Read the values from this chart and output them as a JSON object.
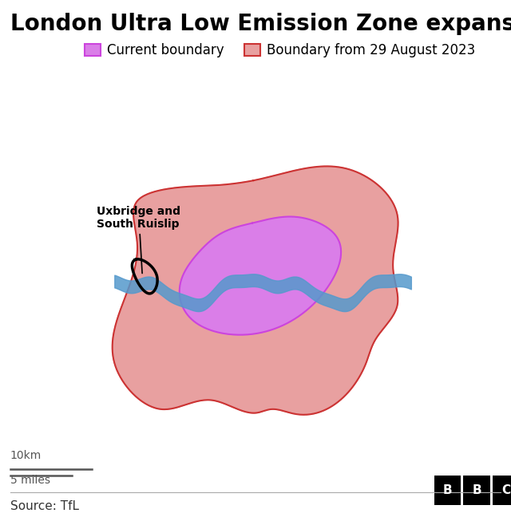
{
  "title": "London Ultra Low Emission Zone expansion",
  "legend_current_label": "Current boundary",
  "legend_new_label": "Boundary from 29 August 2023",
  "source_text": "Source: TfL",
  "bbc_text": "BBC",
  "scale_km": "10km",
  "scale_miles": "5 miles",
  "ulez_current_color": "#da7ee8",
  "ulez_current_edge_color": "#cc44dd",
  "ulez_new_color": "#e8a0a0",
  "ulez_new_edge_color": "#cc3333",
  "thames_color": "#5599cc",
  "uxbridge_color": "#000000",
  "label_uxbridge": "Uxbridge and\nSouth Ruislip",
  "bg_color": "#ffffff",
  "title_fontsize": 20,
  "legend_fontsize": 12,
  "source_fontsize": 11
}
